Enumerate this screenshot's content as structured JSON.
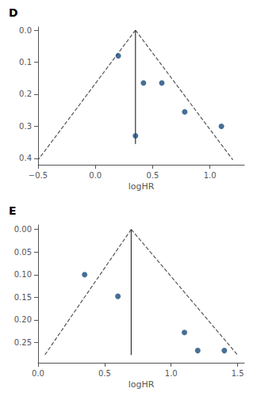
{
  "chart_data": [
    {
      "type": "scatter",
      "title": "D",
      "xlabel": "logHR",
      "xlim": [
        -0.5,
        1.3
      ],
      "ylim": [
        0.42,
        -0.01
      ],
      "xticks": [
        {
          "value": -0.5,
          "label": "−0.5"
        },
        {
          "value": 0.0,
          "label": "0.0"
        },
        {
          "value": 0.5,
          "label": "0.5"
        },
        {
          "value": 1.0,
          "label": "1.0"
        }
      ],
      "yticks": [
        {
          "value": 0.0,
          "label": "0.0"
        },
        0.1,
        0.2,
        0.3,
        0.4
      ],
      "grid": false,
      "series": [
        {
          "type": "line",
          "line_style": "dashed",
          "color": "#555555",
          "x": [
            0.35,
            -0.5
          ],
          "values": [
            0.0,
            0.405
          ]
        },
        {
          "type": "line",
          "line_style": "dashed",
          "color": "#555555",
          "x": [
            0.35,
            1.2
          ],
          "values": [
            0.0,
            0.405
          ]
        },
        {
          "type": "line",
          "line_style": "solid",
          "color": "#333333",
          "x": [
            0.35,
            0.35
          ],
          "values": [
            0.0,
            0.355
          ]
        },
        {
          "type": "scatter",
          "marker": "circle",
          "color": "#1a4a7a",
          "x": [
            0.2,
            0.35,
            0.42,
            0.58,
            0.78,
            1.1
          ],
          "values": [
            0.08,
            0.33,
            0.165,
            0.165,
            0.255,
            0.3
          ]
        }
      ]
    },
    {
      "type": "scatter",
      "title": "E",
      "xlabel": "logHR",
      "xlim": [
        0.0,
        1.55
      ],
      "ylim": [
        0.295,
        -0.01
      ],
      "xticks": [
        {
          "value": 0.0,
          "label": "0.0"
        },
        {
          "value": 0.5,
          "label": "0.5"
        },
        {
          "value": 1.0,
          "label": "1.0"
        },
        {
          "value": 1.5,
          "label": "1.5"
        }
      ],
      "yticks": [
        {
          "value": 0.0,
          "label": "0.00"
        },
        {
          "value": 0.05,
          "label": "0.05"
        },
        {
          "value": 0.1,
          "label": "0.10"
        },
        {
          "value": 0.15,
          "label": "0.15"
        },
        {
          "value": 0.2,
          "label": "0.20"
        },
        {
          "value": 0.25,
          "label": "0.25"
        }
      ],
      "grid": false,
      "series": [
        {
          "type": "line",
          "line_style": "dashed",
          "color": "#555555",
          "x": [
            0.7,
            0.05
          ],
          "values": [
            0.0,
            0.278
          ]
        },
        {
          "type": "line",
          "line_style": "dashed",
          "color": "#555555",
          "x": [
            0.7,
            1.5
          ],
          "values": [
            0.0,
            0.278
          ]
        },
        {
          "type": "line",
          "line_style": "solid",
          "color": "#333333",
          "x": [
            0.7,
            0.7
          ],
          "values": [
            0.0,
            0.278
          ]
        },
        {
          "type": "scatter",
          "marker": "circle",
          "color": "#1a4a7a",
          "x": [
            0.35,
            0.6,
            1.1,
            1.2,
            1.4
          ],
          "values": [
            0.1,
            0.148,
            0.228,
            0.268,
            0.268
          ]
        }
      ]
    }
  ]
}
